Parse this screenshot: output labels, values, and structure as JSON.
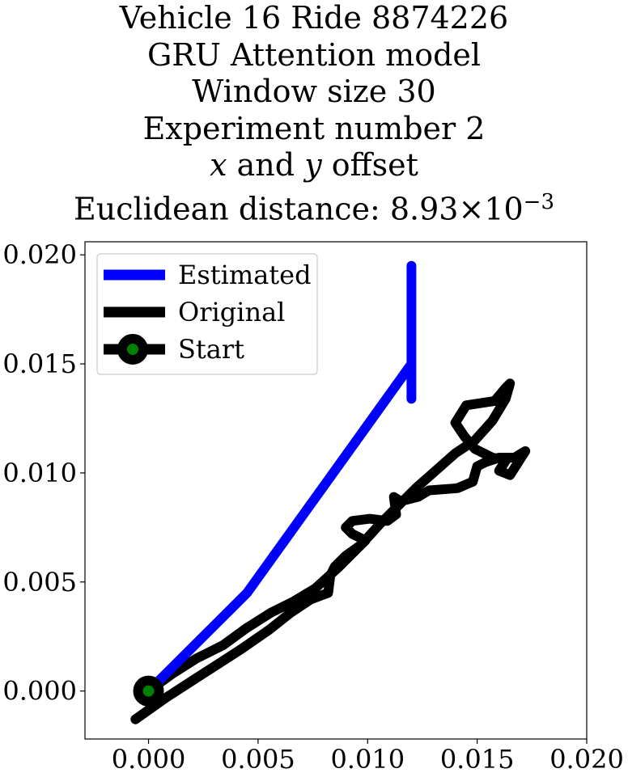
{
  "title_lines": [
    "Vehicle 16 Ride 8874226",
    "GRU Attention model",
    "Window size 30",
    "Experiment number 2",
    "$x$ and $y$ offset",
    "Euclidean distance: $8.93\\times10^{-3}$"
  ],
  "title_display": {
    "line5": {
      "x": "x",
      "and": " and ",
      "y": "y",
      "rest": " offset"
    },
    "line6": {
      "prefix": "Euclidean distance: 8.93",
      "times": "×",
      "base": "10",
      "exp": "−3"
    }
  },
  "chart_data": {
    "type": "line",
    "xlim": [
      -0.0029,
      0.02
    ],
    "ylim": [
      -0.0022,
      0.0206
    ],
    "xticks": [
      0.0,
      0.005,
      0.01,
      0.015,
      0.02
    ],
    "xtick_labels": [
      "0.000",
      "0.005",
      "0.010",
      "0.015",
      "0.020"
    ],
    "yticks": [
      0.0,
      0.005,
      0.01,
      0.015,
      0.02
    ],
    "ytick_labels": [
      "0.000",
      "0.005",
      "0.010",
      "0.015",
      "0.020"
    ],
    "grid": false,
    "legend_position": "top-left",
    "series": [
      {
        "name": "Estimated",
        "color": "#0000ff",
        "x": [
          0.0,
          0.0045,
          0.012,
          0.012,
          0.012
        ],
        "y": [
          0.0,
          0.0045,
          0.015,
          0.0195,
          0.0134
        ]
      },
      {
        "name": "Original",
        "color": "#000000",
        "x": [
          0.0,
          0.0011,
          0.0022,
          0.0034,
          0.0045,
          0.0056,
          0.0066,
          0.0076,
          0.0087,
          0.0097,
          0.0106,
          0.0114,
          0.0122,
          0.0131,
          0.014,
          0.0149,
          0.0157,
          0.0163,
          0.0165,
          0.0163,
          0.0158,
          0.0145,
          0.014,
          0.0144,
          0.0149,
          0.0157,
          0.0163,
          0.0164,
          0.016,
          0.0165,
          0.0172,
          0.0167,
          0.016,
          0.0154,
          0.015,
          0.0148,
          0.0141,
          0.0128,
          0.0123,
          0.0115,
          0.0112,
          0.0113,
          0.0109,
          0.0101,
          0.0093,
          0.009,
          0.0093,
          0.0099,
          0.0097,
          0.009,
          0.0085,
          0.0083,
          0.0082,
          0.0074,
          0.0065,
          0.0055,
          0.0042,
          0.0025,
          0.0008,
          -0.0006
        ],
        "y": [
          0.0,
          0.0008,
          0.0015,
          0.0021,
          0.0029,
          0.0036,
          0.0041,
          0.0047,
          0.0057,
          0.0067,
          0.0077,
          0.0085,
          0.0093,
          0.0101,
          0.0109,
          0.0115,
          0.0124,
          0.0134,
          0.0141,
          0.0139,
          0.0133,
          0.0131,
          0.0123,
          0.0117,
          0.0111,
          0.0107,
          0.0106,
          0.0107,
          0.0101,
          0.0099,
          0.011,
          0.0107,
          0.0107,
          0.0105,
          0.0103,
          0.0096,
          0.0093,
          0.0092,
          0.0089,
          0.0087,
          0.0089,
          0.0081,
          0.0078,
          0.0079,
          0.0078,
          0.0075,
          0.0072,
          0.0069,
          0.0067,
          0.0062,
          0.0057,
          0.0053,
          0.0045,
          0.0042,
          0.0036,
          0.0028,
          0.0019,
          0.0008,
          -0.0003,
          -0.0013
        ]
      },
      {
        "name": "Start",
        "color": "#000000",
        "marker_face": "#008000",
        "x": [
          0.0
        ],
        "y": [
          0.0
        ]
      }
    ]
  }
}
